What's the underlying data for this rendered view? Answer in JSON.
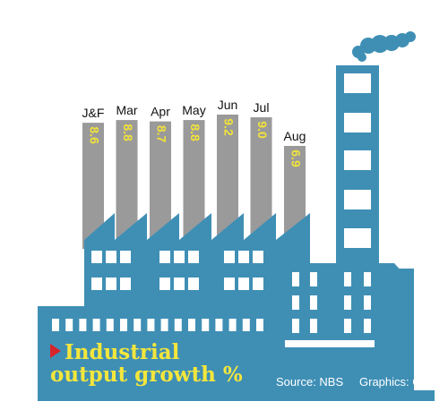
{
  "chart_data": {
    "type": "bar",
    "categories": [
      "J&F",
      "Mar",
      "Apr",
      "May",
      "Jun",
      "Jul",
      "Aug"
    ],
    "values": [
      8.6,
      8.8,
      8.7,
      8.8,
      9.2,
      9.0,
      6.9
    ],
    "value_labels": [
      "8.6",
      "8.8",
      "8.7",
      "8.8",
      "9.2",
      "9.0",
      "6.9"
    ],
    "title_line1": "Industrial",
    "title_line2": "output growth %",
    "source": "Source: NBS",
    "graphics": "Graphics: GT",
    "ylim": [
      0,
      9.2
    ],
    "grid": false
  },
  "colors": {
    "factory": "#3f8fb5",
    "chimney_bars": "#9a9a9a",
    "windows": "#ffffff",
    "title": "#f4e63c",
    "value_labels": "#f2e33a",
    "pointer": "#d8242b"
  }
}
